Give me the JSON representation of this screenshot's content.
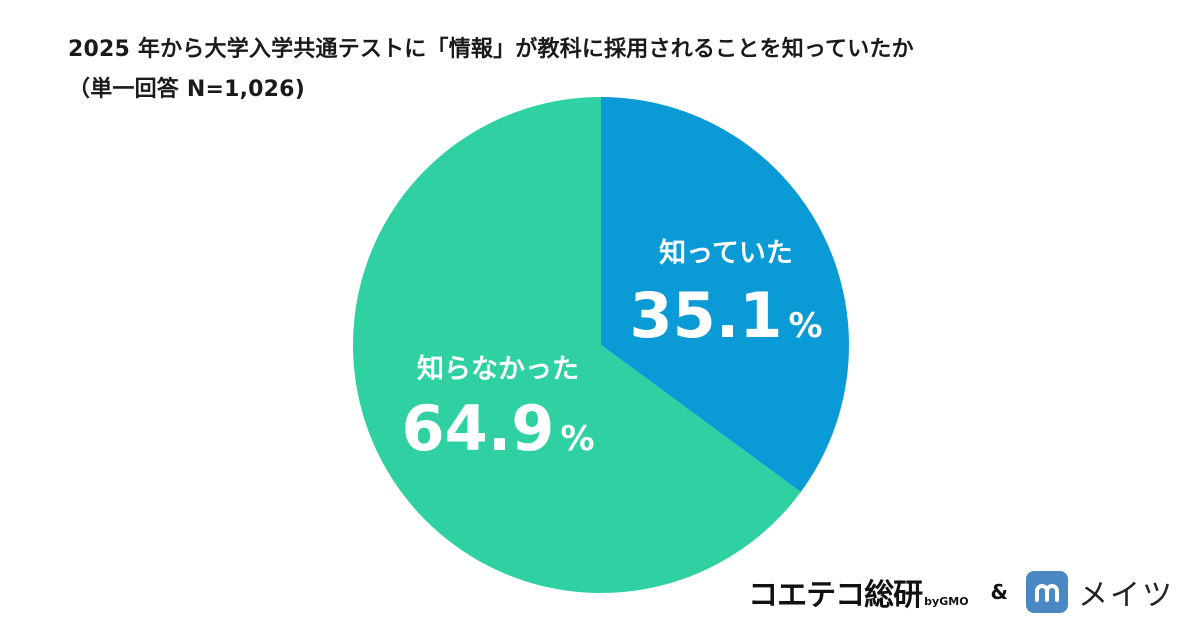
{
  "title": {
    "line1": "2025 年から大学入学共通テストに「情報」が教科に採用されることを知っていたか",
    "line2": "（単一回答 N=1,026)"
  },
  "chart_data": {
    "type": "pie",
    "slices": [
      {
        "label": "知っていた",
        "value": 35.1,
        "display": "35.1",
        "unit": "%",
        "color": "#0a9ad6"
      },
      {
        "label": "知らなかった",
        "value": 64.9,
        "display": "64.9",
        "unit": "%",
        "color": "#2fd1a3"
      }
    ],
    "start": "12 o'clock",
    "direction": "clockwise"
  },
  "footer": {
    "logo1_main": "コエテコ総研",
    "logo1_by": "byGMO",
    "amp": "&",
    "logo2_text": "メイツ"
  }
}
